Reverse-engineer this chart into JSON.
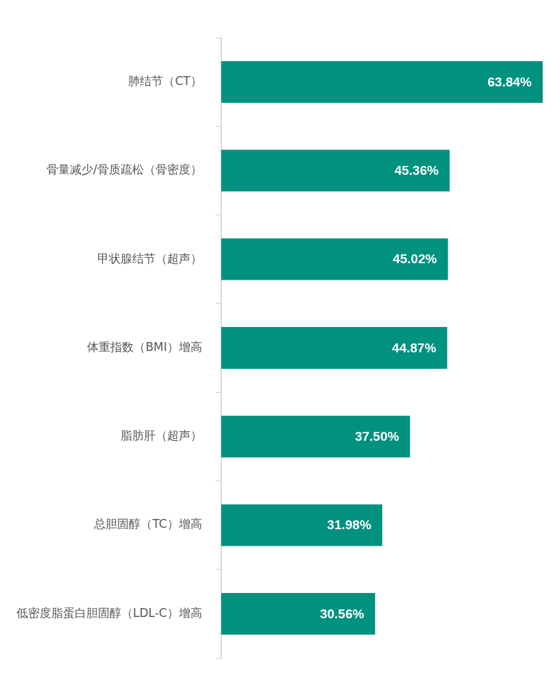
{
  "chart_data": {
    "type": "bar",
    "orientation": "horizontal",
    "categories": [
      "肺结节（CT）",
      "骨量减少/骨质疏松（骨密度）",
      "甲状腺结节（超声）",
      "体重指数（BMI）增高",
      "脂肪肝（超声）",
      "总胆固醇（TC）增高",
      "低密度脂蛋白胆固醇（LDL-C）增高"
    ],
    "values": [
      63.84,
      45.36,
      45.02,
      44.87,
      37.5,
      31.98,
      30.56
    ],
    "value_labels": [
      "63.84%",
      "45.36%",
      "45.02%",
      "44.87%",
      "37.50%",
      "31.98%",
      "30.56%"
    ],
    "color": "#00917f"
  }
}
